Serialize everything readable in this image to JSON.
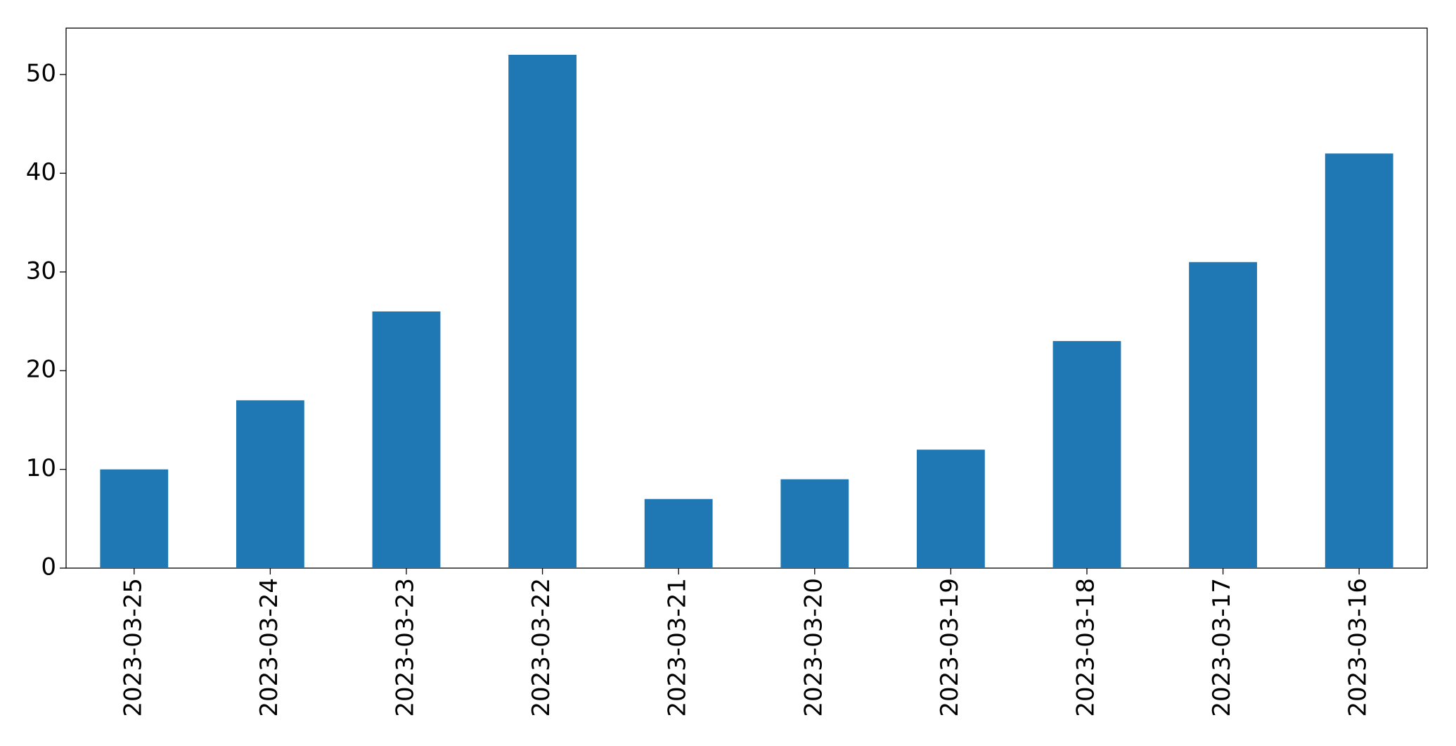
{
  "chart_data": {
    "type": "bar",
    "categories": [
      "2023-03-25",
      "2023-03-24",
      "2023-03-23",
      "2023-03-22",
      "2023-03-21",
      "2023-03-20",
      "2023-03-19",
      "2023-03-18",
      "2023-03-17",
      "2023-03-16"
    ],
    "values": [
      10,
      17,
      26,
      52,
      7,
      9,
      12,
      23,
      31,
      42
    ],
    "color": "#1f77b4",
    "ylim": [
      0,
      54.7
    ],
    "yticks": [
      0,
      10,
      20,
      30,
      40,
      50
    ],
    "grid": false
  }
}
